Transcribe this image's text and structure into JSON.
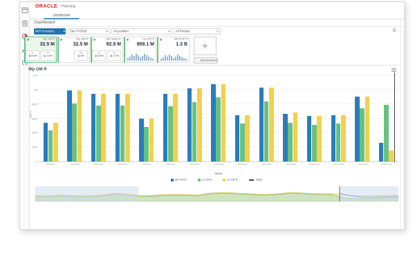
{
  "app": {
    "brand": "ORACLE",
    "product": "Planning"
  },
  "tabs": [
    {
      "label": "Dashboard"
    }
  ],
  "breadcrumb": "Dashboard",
  "filters": {
    "primary": "MFP In-season",
    "dropdowns": [
      "Dec FY2018",
      "All Location",
      "All Product"
    ]
  },
  "sidebar": {
    "items": [
      {
        "icon": "panel-icon",
        "active": false
      },
      {
        "icon": "tasks-icon",
        "active": false
      },
      {
        "icon": "insights-icon",
        "active": true
      },
      {
        "icon": "bar-chart-icon",
        "active": false
      },
      {
        "icon": "recent-clock-icon",
        "active": false
      }
    ]
  },
  "cards": [
    {
      "label": "Wp GM R",
      "value": "32.5 M",
      "selected": true,
      "stats": [
        {
          "label": "Ly",
          "value": "8.3%"
        },
        {
          "label": "Cp",
          "value": "2.5%"
        }
      ]
    },
    {
      "label": "Wp GM R",
      "value": "32.5 M",
      "selected": false,
      "stats": [
        {
          "label": "Op",
          "value": "0%"
        }
      ]
    },
    {
      "label": "Wp Sales R",
      "value": "92.9 M",
      "selected": false,
      "stats": [
        {
          "label": "Ly",
          "value": "8.3%"
        },
        {
          "label": "Cp",
          "value": "2.7%"
        }
      ]
    },
    {
      "label": "Ly EOP R",
      "value": "869.1 M",
      "selected": false,
      "sparkline": [
        4,
        6,
        9,
        7,
        10,
        8,
        5,
        7,
        10,
        8,
        6,
        4,
        3
      ]
    },
    {
      "label": "Wp EOP R",
      "value": "1.3 B",
      "selected": false,
      "sparkline": [
        3,
        5,
        8,
        6,
        9,
        7,
        4,
        6,
        9,
        7,
        5,
        4,
        3
      ]
    }
  ],
  "edit_dashboard_label": "Edit Dashboard",
  "add_tile_label": "+",
  "chart_data": {
    "type": "bar",
    "title": "Wp GM R",
    "xlabel": "Week",
    "ylabel": "GM R",
    "categories": [
      "8/4/2018",
      "8/11/2018",
      "8/18/2018",
      "8/25/2018",
      "9/1/2018",
      "9/8/2018",
      "9/15/2018",
      "9/22/2018",
      "9/29/2018",
      "10/6/2018",
      "10/13/2018",
      "10/20/2018",
      "10/27/2018",
      "11/3/2018",
      "11/10/2018"
    ],
    "series": [
      {
        "name": "Wp GM R",
        "color": "#2a7cbb",
        "values": [
          540000,
          990000,
          940000,
          940000,
          600000,
          940000,
          1020000,
          1080000,
          640000,
          1030000,
          660000,
          630000,
          640000,
          900000,
          260000
        ]
      },
      {
        "name": "Ly GM R",
        "color": "#68c182",
        "values": [
          430000,
          810000,
          780000,
          780000,
          480000,
          770000,
          830000,
          890000,
          530000,
          840000,
          540000,
          510000,
          530000,
          740000,
          790000
        ]
      },
      {
        "name": "Cp GM R",
        "color": "#f3d04e",
        "values": [
          540000,
          990000,
          940000,
          940000,
          600000,
          940000,
          1020000,
          1080000,
          640000,
          1030000,
          680000,
          630000,
          640000,
          900000,
          150000
        ]
      }
    ],
    "ylim": [
      0,
      1200000
    ],
    "yticks": [
      "1.2M",
      "1M",
      "800K",
      "600K",
      "400K",
      "200K",
      "0"
    ],
    "grid": true,
    "legend_position": "bottom",
    "today_marker": {
      "label": "Today",
      "x_index": 14,
      "color": "#3f3f3f"
    },
    "overview": {
      "ly_area": [
        7,
        7,
        8,
        7,
        7,
        8,
        11,
        9,
        7,
        8,
        9,
        9,
        8,
        11,
        12,
        11,
        10,
        9,
        10,
        12,
        11,
        10,
        10,
        5,
        4,
        4,
        5,
        6
      ],
      "cp_line": [
        8,
        8,
        9,
        8,
        8,
        9,
        12,
        10,
        8,
        9,
        10,
        10,
        9,
        12,
        13,
        12,
        11,
        10,
        11,
        13,
        12,
        11,
        11,
        9,
        8,
        8,
        8,
        9
      ],
      "wp_tail": [
        12,
        8,
        6,
        6,
        7,
        7
      ],
      "glass_regions": [
        [
          0,
          0.285
        ],
        [
          0.838,
          1
        ]
      ],
      "today_frac": 0.838
    }
  }
}
